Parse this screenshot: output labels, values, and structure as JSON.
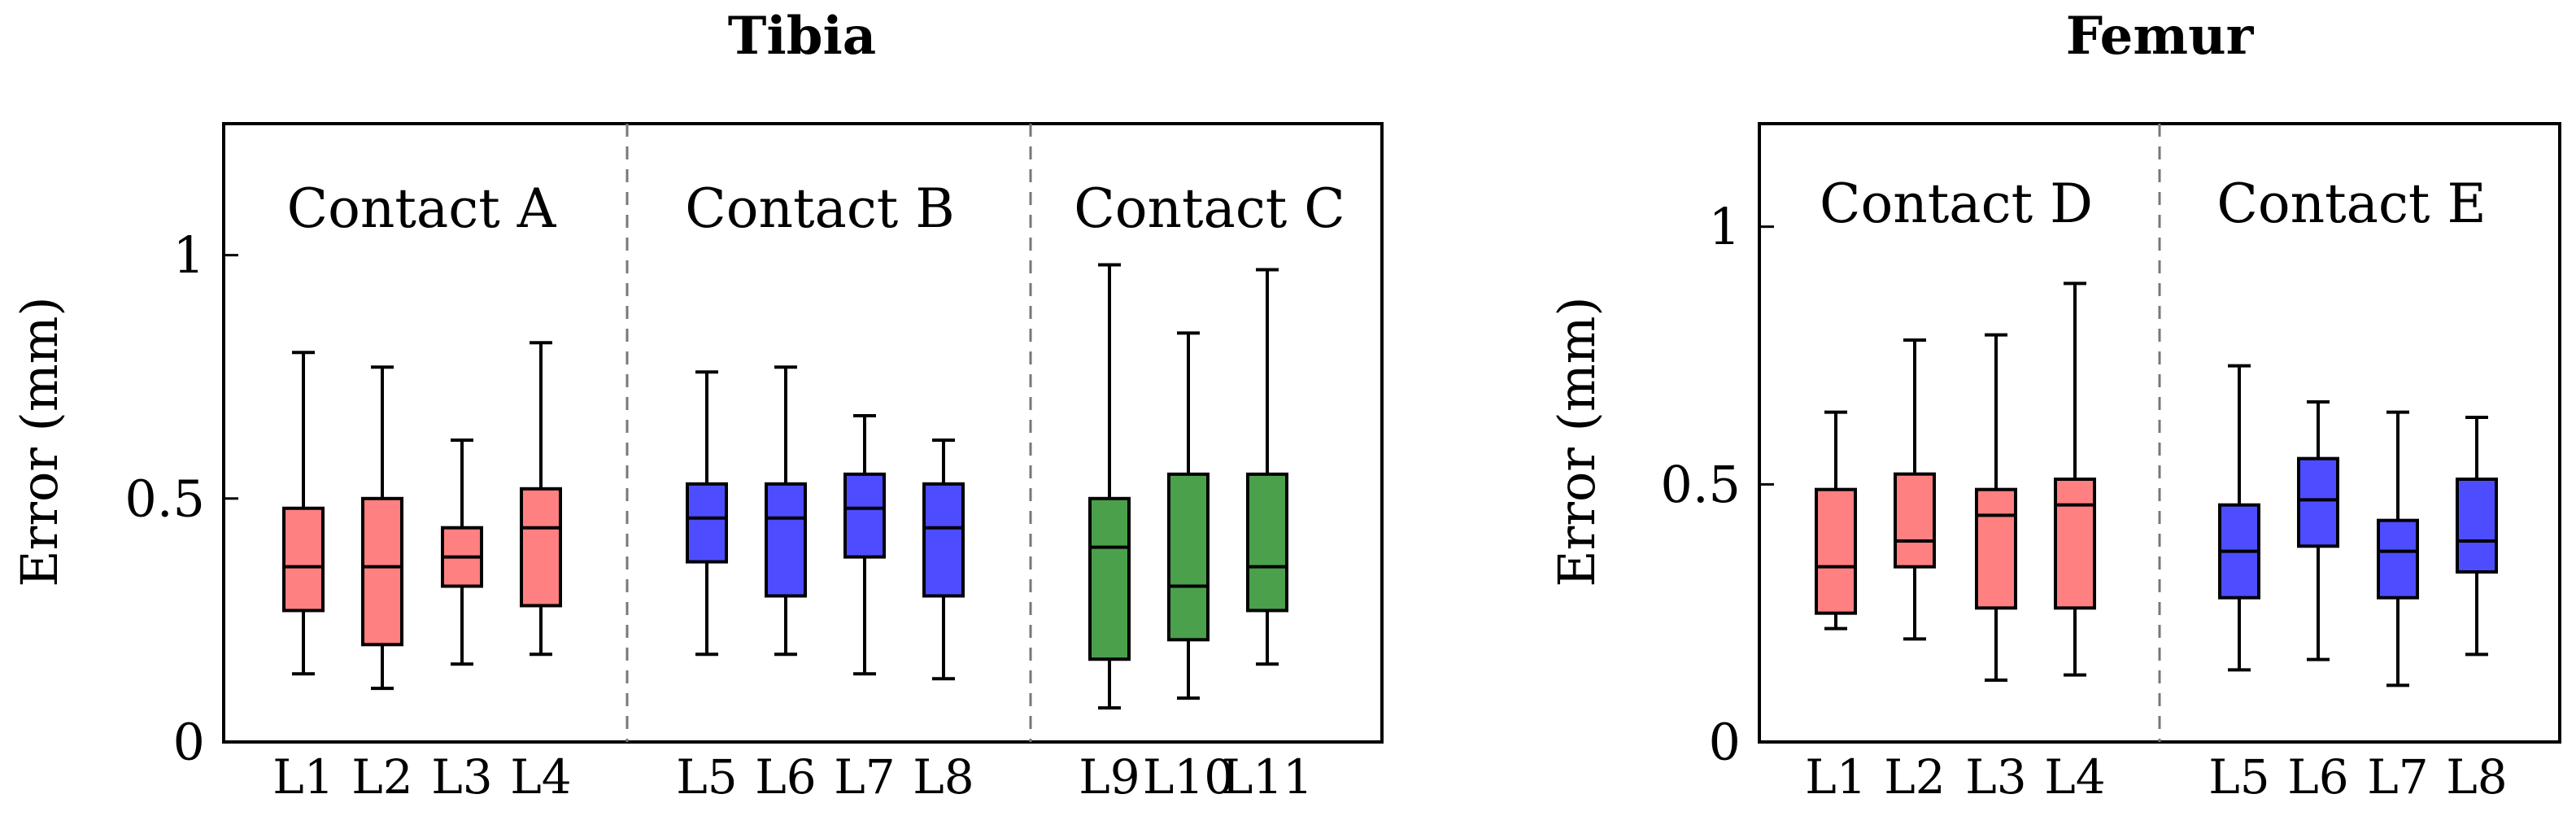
{
  "chart_data": [
    {
      "type": "box",
      "title": "Tibia",
      "ylabel": "Error (mm)",
      "xlabel": "",
      "ylim": [
        0,
        1.27
      ],
      "yticks": [
        0,
        0.5,
        1
      ],
      "ytick_labels": [
        "0",
        "0.5",
        "1"
      ],
      "grid": false,
      "groups": [
        {
          "label": "Contact A",
          "color": "#ff8080"
        },
        {
          "label": "Contact B",
          "color": "#4d4dff"
        },
        {
          "label": "Contact C",
          "color": "#4ba04b"
        }
      ],
      "boxes": [
        {
          "label": "L1",
          "group": 0,
          "min": 0.14,
          "q1": 0.27,
          "median": 0.36,
          "q3": 0.48,
          "max": 0.8
        },
        {
          "label": "L2",
          "group": 0,
          "min": 0.11,
          "q1": 0.2,
          "median": 0.36,
          "q3": 0.5,
          "max": 0.77
        },
        {
          "label": "L3",
          "group": 0,
          "min": 0.16,
          "q1": 0.32,
          "median": 0.38,
          "q3": 0.44,
          "max": 0.62
        },
        {
          "label": "L4",
          "group": 0,
          "min": 0.18,
          "q1": 0.28,
          "median": 0.44,
          "q3": 0.52,
          "max": 0.82
        },
        {
          "label": "L5",
          "group": 1,
          "min": 0.18,
          "q1": 0.37,
          "median": 0.46,
          "q3": 0.53,
          "max": 0.76
        },
        {
          "label": "L6",
          "group": 1,
          "min": 0.18,
          "q1": 0.3,
          "median": 0.46,
          "q3": 0.53,
          "max": 0.77
        },
        {
          "label": "L7",
          "group": 1,
          "min": 0.14,
          "q1": 0.38,
          "median": 0.48,
          "q3": 0.55,
          "max": 0.67
        },
        {
          "label": "L8",
          "group": 1,
          "min": 0.13,
          "q1": 0.3,
          "median": 0.44,
          "q3": 0.53,
          "max": 0.62
        },
        {
          "label": "L9",
          "group": 2,
          "min": 0.07,
          "q1": 0.17,
          "median": 0.4,
          "q3": 0.5,
          "max": 0.98
        },
        {
          "label": "L10",
          "group": 2,
          "min": 0.09,
          "q1": 0.21,
          "median": 0.32,
          "q3": 0.55,
          "max": 0.84
        },
        {
          "label": "L11",
          "group": 2,
          "min": 0.16,
          "q1": 0.27,
          "median": 0.36,
          "q3": 0.55,
          "max": 0.97
        }
      ]
    },
    {
      "type": "box",
      "title": "Femur",
      "ylabel": "Error (mm)",
      "xlabel": "",
      "ylim": [
        0,
        1.2
      ],
      "yticks": [
        0,
        0.5,
        1
      ],
      "ytick_labels": [
        "0",
        "0.5",
        "1"
      ],
      "grid": false,
      "groups": [
        {
          "label": "Contact D",
          "color": "#ff8080"
        },
        {
          "label": "Contact E",
          "color": "#4d4dff"
        }
      ],
      "boxes": [
        {
          "label": "L1",
          "group": 0,
          "min": 0.22,
          "q1": 0.25,
          "median": 0.34,
          "q3": 0.49,
          "max": 0.64
        },
        {
          "label": "L2",
          "group": 0,
          "min": 0.2,
          "q1": 0.34,
          "median": 0.39,
          "q3": 0.52,
          "max": 0.78
        },
        {
          "label": "L3",
          "group": 0,
          "min": 0.12,
          "q1": 0.26,
          "median": 0.44,
          "q3": 0.49,
          "max": 0.79
        },
        {
          "label": "L4",
          "group": 0,
          "min": 0.13,
          "q1": 0.26,
          "median": 0.46,
          "q3": 0.51,
          "max": 0.89
        },
        {
          "label": "L5",
          "group": 1,
          "min": 0.14,
          "q1": 0.28,
          "median": 0.37,
          "q3": 0.46,
          "max": 0.73
        },
        {
          "label": "L6",
          "group": 1,
          "min": 0.16,
          "q1": 0.38,
          "median": 0.47,
          "q3": 0.55,
          "max": 0.66
        },
        {
          "label": "L7",
          "group": 1,
          "min": 0.11,
          "q1": 0.28,
          "median": 0.37,
          "q3": 0.43,
          "max": 0.64
        },
        {
          "label": "L8",
          "group": 1,
          "min": 0.17,
          "q1": 0.33,
          "median": 0.39,
          "q3": 0.51,
          "max": 0.63
        }
      ]
    }
  ]
}
